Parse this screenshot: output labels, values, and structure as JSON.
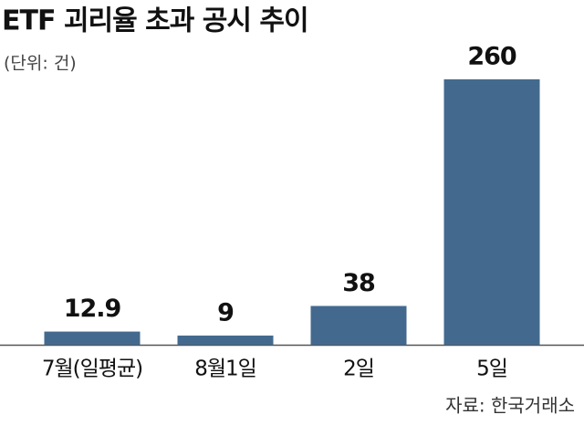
{
  "chart_data": {
    "type": "bar",
    "title": "ETF 괴리율 초과 공시 추이",
    "subtitle": "(단위: 건)",
    "categories": [
      "7월(일평균)",
      "8월1일",
      "2일",
      "5일"
    ],
    "values": [
      12.9,
      9,
      38,
      260
    ],
    "color": "#436a8e",
    "source": "자료: 한국거래소"
  }
}
